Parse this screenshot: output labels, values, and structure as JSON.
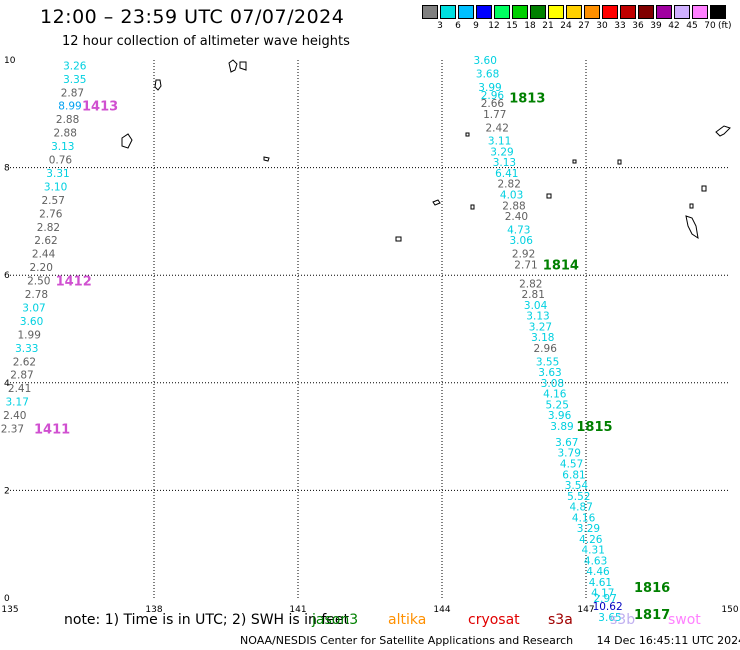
{
  "header": {
    "title": "12:00 – 23:59 UTC 07/07/2024",
    "subtitle": "12 hour collection of altimeter wave heights"
  },
  "colorbar": {
    "colors": [
      "#808080",
      "#00e0e0",
      "#00c0ff",
      "#0000ff",
      "#00ff60",
      "#00d000",
      "#008000",
      "#ffff00",
      "#ffd000",
      "#ff9000",
      "#ff0000",
      "#c00000",
      "#800000",
      "#a000a0",
      "#d0b0ff",
      "#ff80ff",
      "#000000"
    ],
    "labels": [
      "3",
      "6",
      "9",
      "12",
      "15",
      "18",
      "21",
      "24",
      "27",
      "30",
      "33",
      "36",
      "39",
      "42",
      "45",
      "70"
    ],
    "unit": "(ft)"
  },
  "footer": {
    "note": "note:  1) Time is in UTC;  2) SWH is in feet",
    "credit": "NOAA/NESDIS Center for Satellite Applications and Research",
    "timestamp": "14 Dec 16:45:11 UTC 2024"
  },
  "legend": [
    {
      "name": "jason3",
      "color": "#008000"
    },
    {
      "name": "altika",
      "color": "#ff9000"
    },
    {
      "name": "cryosat",
      "color": "#e00000"
    },
    {
      "name": "s3a",
      "color": "#a00000"
    },
    {
      "name": "s3b",
      "color": "#c0b0f0"
    },
    {
      "name": "swot",
      "color": "#ff80ff"
    }
  ],
  "chart_data": {
    "type": "scatter",
    "xlim": [
      135,
      150
    ],
    "ylim": [
      0,
      10
    ],
    "x_ticks": [
      135,
      138,
      141,
      144,
      147,
      150
    ],
    "y_ticks": [
      0,
      2,
      4,
      6,
      8,
      10
    ],
    "grid": true,
    "tracks": [
      {
        "satellite": "swot",
        "color": "#d050d0",
        "points": [
          {
            "lon": 136.35,
            "lat": 9.9,
            "v": "3.26",
            "c": "#00d0e0"
          },
          {
            "lon": 136.35,
            "lat": 9.65,
            "v": "3.35",
            "c": "#00d0e0"
          },
          {
            "lon": 136.3,
            "lat": 9.4,
            "v": "2.87",
            "c": "#606060"
          },
          {
            "lon": 136.25,
            "lat": 9.15,
            "v": "8.99",
            "c": "#00a0f0"
          },
          {
            "lon": 136.2,
            "lat": 8.9,
            "v": "2.88",
            "c": "#606060"
          },
          {
            "lon": 136.15,
            "lat": 8.65,
            "v": "2.88",
            "c": "#606060"
          },
          {
            "lon": 136.1,
            "lat": 8.4,
            "v": "3.13",
            "c": "#00d0e0"
          },
          {
            "lon": 136.05,
            "lat": 8.15,
            "v": "0.76",
            "c": "#606060"
          },
          {
            "lon": 136.0,
            "lat": 7.9,
            "v": "3.31",
            "c": "#00d0e0"
          },
          {
            "lon": 135.95,
            "lat": 7.65,
            "v": "3.10",
            "c": "#00d0e0"
          },
          {
            "lon": 135.9,
            "lat": 7.4,
            "v": "2.57",
            "c": "#606060"
          },
          {
            "lon": 135.85,
            "lat": 7.15,
            "v": "2.76",
            "c": "#606060"
          },
          {
            "lon": 135.8,
            "lat": 6.9,
            "v": "2.82",
            "c": "#606060"
          },
          {
            "lon": 135.75,
            "lat": 6.65,
            "v": "2.62",
            "c": "#606060"
          },
          {
            "lon": 135.7,
            "lat": 6.4,
            "v": "2.44",
            "c": "#606060"
          },
          {
            "lon": 135.65,
            "lat": 6.15,
            "v": "2.20",
            "c": "#606060"
          },
          {
            "lon": 135.6,
            "lat": 5.9,
            "v": "2.50",
            "c": "#606060"
          },
          {
            "lon": 135.55,
            "lat": 5.65,
            "v": "2.78",
            "c": "#606060"
          },
          {
            "lon": 135.5,
            "lat": 5.4,
            "v": "3.07",
            "c": "#00d0e0"
          },
          {
            "lon": 135.45,
            "lat": 5.15,
            "v": "3.60",
            "c": "#00d0e0"
          },
          {
            "lon": 135.4,
            "lat": 4.9,
            "v": "1.99",
            "c": "#606060"
          },
          {
            "lon": 135.35,
            "lat": 4.65,
            "v": "3.33",
            "c": "#00d0e0"
          },
          {
            "lon": 135.3,
            "lat": 4.4,
            "v": "2.62",
            "c": "#606060"
          },
          {
            "lon": 135.25,
            "lat": 4.15,
            "v": "2.87",
            "c": "#606060"
          },
          {
            "lon": 135.2,
            "lat": 3.9,
            "v": "2.41",
            "c": "#606060"
          },
          {
            "lon": 135.15,
            "lat": 3.65,
            "v": "3.17",
            "c": "#00d0e0"
          },
          {
            "lon": 135.1,
            "lat": 3.4,
            "v": "2.40",
            "c": "#606060"
          },
          {
            "lon": 135.05,
            "lat": 3.15,
            "v": "2.37",
            "c": "#606060"
          }
        ],
        "time_labels": [
          {
            "lon": 136.5,
            "lat": 9.15,
            "t": "1413"
          },
          {
            "lon": 135.95,
            "lat": 5.9,
            "t": "1412"
          },
          {
            "lon": 135.5,
            "lat": 3.15,
            "t": "1411"
          }
        ]
      },
      {
        "satellite": "jason3",
        "color": "#008000",
        "points": [
          {
            "lon": 144.9,
            "lat": 10.0,
            "v": "3.60",
            "c": "#00d0e0"
          },
          {
            "lon": 144.95,
            "lat": 9.75,
            "v": "3.68",
            "c": "#00d0e0"
          },
          {
            "lon": 145.0,
            "lat": 9.5,
            "v": "3.99",
            "c": "#00d0e0"
          },
          {
            "lon": 145.05,
            "lat": 9.35,
            "v": "2.96",
            "c": "#00d0e0"
          },
          {
            "lon": 145.05,
            "lat": 9.2,
            "v": "2.66",
            "c": "#606060"
          },
          {
            "lon": 145.1,
            "lat": 9.0,
            "v": "1.77",
            "c": "#606060"
          },
          {
            "lon": 145.15,
            "lat": 8.75,
            "v": "2.42",
            "c": "#606060"
          },
          {
            "lon": 145.2,
            "lat": 8.5,
            "v": "3.11",
            "c": "#00d0e0"
          },
          {
            "lon": 145.25,
            "lat": 8.3,
            "v": "3.29",
            "c": "#00d0e0"
          },
          {
            "lon": 145.3,
            "lat": 8.1,
            "v": "3.13",
            "c": "#00d0e0"
          },
          {
            "lon": 145.35,
            "lat": 7.9,
            "v": "6.41",
            "c": "#00d0e0"
          },
          {
            "lon": 145.4,
            "lat": 7.7,
            "v": "2.82",
            "c": "#606060"
          },
          {
            "lon": 145.45,
            "lat": 7.5,
            "v": "4.03",
            "c": "#00d0e0"
          },
          {
            "lon": 145.5,
            "lat": 7.3,
            "v": "2.88",
            "c": "#606060"
          },
          {
            "lon": 145.55,
            "lat": 7.1,
            "v": "2.40",
            "c": "#606060"
          },
          {
            "lon": 145.6,
            "lat": 6.85,
            "v": "4.73",
            "c": "#00d0e0"
          },
          {
            "lon": 145.65,
            "lat": 6.65,
            "v": "3.06",
            "c": "#00d0e0"
          },
          {
            "lon": 145.7,
            "lat": 6.4,
            "v": "2.92",
            "c": "#606060"
          },
          {
            "lon": 145.75,
            "lat": 6.2,
            "v": "2.71",
            "c": "#606060"
          },
          {
            "lon": 145.85,
            "lat": 5.85,
            "v": "2.82",
            "c": "#606060"
          },
          {
            "lon": 145.9,
            "lat": 5.65,
            "v": "2.81",
            "c": "#606060"
          },
          {
            "lon": 145.95,
            "lat": 5.45,
            "v": "3.04",
            "c": "#00d0e0"
          },
          {
            "lon": 146.0,
            "lat": 5.25,
            "v": "3.13",
            "c": "#00d0e0"
          },
          {
            "lon": 146.05,
            "lat": 5.05,
            "v": "3.27",
            "c": "#00d0e0"
          },
          {
            "lon": 146.1,
            "lat": 4.85,
            "v": "3.18",
            "c": "#00d0e0"
          },
          {
            "lon": 146.15,
            "lat": 4.65,
            "v": "2.96",
            "c": "#606060"
          },
          {
            "lon": 146.2,
            "lat": 4.4,
            "v": "3.55",
            "c": "#00d0e0"
          },
          {
            "lon": 146.25,
            "lat": 4.2,
            "v": "3.63",
            "c": "#00d0e0"
          },
          {
            "lon": 146.3,
            "lat": 4.0,
            "v": "3.08",
            "c": "#00d0e0"
          },
          {
            "lon": 146.35,
            "lat": 3.8,
            "v": "4.16",
            "c": "#00d0e0"
          },
          {
            "lon": 146.4,
            "lat": 3.6,
            "v": "5.25",
            "c": "#00d0e0"
          },
          {
            "lon": 146.45,
            "lat": 3.4,
            "v": "3.96",
            "c": "#00d0e0"
          },
          {
            "lon": 146.5,
            "lat": 3.2,
            "v": "3.89",
            "c": "#00d0e0"
          },
          {
            "lon": 146.6,
            "lat": 2.9,
            "v": "3.67",
            "c": "#00d0e0"
          },
          {
            "lon": 146.65,
            "lat": 2.7,
            "v": "3.79",
            "c": "#00d0e0"
          },
          {
            "lon": 146.7,
            "lat": 2.5,
            "v": "4.57",
            "c": "#00d0e0"
          },
          {
            "lon": 146.75,
            "lat": 2.3,
            "v": "6.81",
            "c": "#00d0e0"
          },
          {
            "lon": 146.8,
            "lat": 2.1,
            "v": "3.54",
            "c": "#00d0e0"
          },
          {
            "lon": 146.85,
            "lat": 1.9,
            "v": "5.52",
            "c": "#00d0e0"
          },
          {
            "lon": 146.9,
            "lat": 1.7,
            "v": "4.87",
            "c": "#00d0e0"
          },
          {
            "lon": 146.95,
            "lat": 1.5,
            "v": "4.16",
            "c": "#00d0e0"
          },
          {
            "lon": 147.05,
            "lat": 1.3,
            "v": "3.29",
            "c": "#00d0e0"
          },
          {
            "lon": 147.1,
            "lat": 1.1,
            "v": "4.26",
            "c": "#00d0e0"
          },
          {
            "lon": 147.15,
            "lat": 0.9,
            "v": "4.31",
            "c": "#00d0e0"
          },
          {
            "lon": 147.2,
            "lat": 0.7,
            "v": "4.63",
            "c": "#00d0e0"
          },
          {
            "lon": 147.25,
            "lat": 0.5,
            "v": "4.46",
            "c": "#00d0e0"
          },
          {
            "lon": 147.3,
            "lat": 0.3,
            "v": "4.61",
            "c": "#00d0e0"
          },
          {
            "lon": 147.35,
            "lat": 0.1,
            "v": "4.17",
            "c": "#00d0e0"
          },
          {
            "lon": 147.4,
            "lat": 0.0,
            "v": "2.97",
            "c": "#00d0e0"
          },
          {
            "lon": 147.45,
            "lat": -0.15,
            "v": "10.62",
            "c": "#0000c0"
          },
          {
            "lon": 147.5,
            "lat": -0.35,
            "v": "3.65",
            "c": "#00d0e0"
          }
        ],
        "time_labels": [
          {
            "lon": 145.4,
            "lat": 9.3,
            "t": "1813"
          },
          {
            "lon": 146.1,
            "lat": 6.2,
            "t": "1814"
          },
          {
            "lon": 146.8,
            "lat": 3.2,
            "t": "1815"
          },
          {
            "lon": 148.0,
            "lat": 0.2,
            "t": "1816"
          },
          {
            "lon": 148.0,
            "lat": -0.3,
            "t": "1817"
          }
        ]
      }
    ]
  }
}
